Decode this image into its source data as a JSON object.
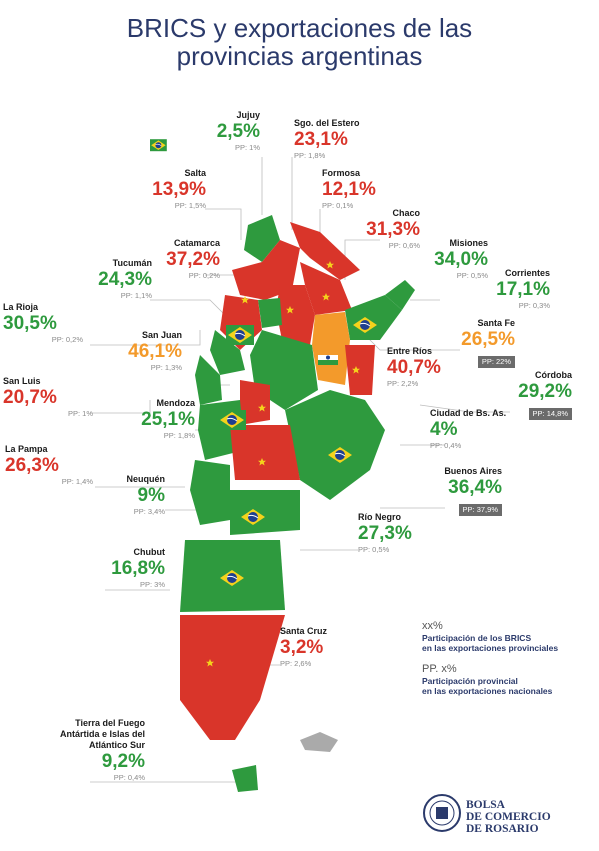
{
  "title_line1": "BRICS y exportaciones de las",
  "title_line2": "provincias argentinas",
  "colors": {
    "green": "#2e9a3e",
    "red": "#d9352a",
    "orange": "#f39a2b",
    "navy": "#2b3a6b",
    "gray": "#8a8a8a",
    "box": "#6b6b6b"
  },
  "provinces": [
    {
      "key": "jujuy",
      "name": "Jujuy",
      "pct": "2,5%",
      "pp": "PP: 1%",
      "color": "green",
      "boxed": false,
      "flag": "brazil"
    },
    {
      "key": "sgo",
      "name": "Sgo. del Estero",
      "pct": "23,1%",
      "pp": "PP: 1,8%",
      "color": "red",
      "boxed": false,
      "flag": "china"
    },
    {
      "key": "salta",
      "name": "Salta",
      "pct": "13,9%",
      "pp": "PP: 1,5%",
      "color": "red",
      "boxed": false,
      "flag": "china"
    },
    {
      "key": "formosa",
      "name": "Formosa",
      "pct": "12,1%",
      "pp": "PP: 0,1%",
      "color": "red",
      "boxed": false,
      "flag": "china"
    },
    {
      "key": "chaco",
      "name": "Chaco",
      "pct": "31,3%",
      "pp": "PP: 0,6%",
      "color": "red",
      "boxed": false,
      "flag": "china"
    },
    {
      "key": "catamarca",
      "name": "Catamarca",
      "pct": "37,2%",
      "pp": "PP: 0,2%",
      "color": "red",
      "boxed": false,
      "flag": "china"
    },
    {
      "key": "misiones",
      "name": "Misiones",
      "pct": "34,0%",
      "pp": "PP: 0,5%",
      "color": "green",
      "boxed": false,
      "flag": "brazil"
    },
    {
      "key": "tucuman",
      "name": "Tucumán",
      "pct": "24,3%",
      "pp": "PP: 1,1%",
      "color": "green",
      "boxed": false,
      "flag": "brazil"
    },
    {
      "key": "corrientes",
      "name": "Corrientes",
      "pct": "17,1%",
      "pp": "PP: 0,3%",
      "color": "green",
      "boxed": false,
      "flag": "brazil"
    },
    {
      "key": "larioja",
      "name": "La Rioja",
      "pct": "30,5%",
      "pp": "PP: 0,2%",
      "color": "green",
      "boxed": false,
      "flag": "brazil"
    },
    {
      "key": "santafe",
      "name": "Santa Fe",
      "pct": "26,5%",
      "pp": "PP: 22%",
      "color": "orange",
      "boxed": true,
      "flag": "india"
    },
    {
      "key": "sanjuan",
      "name": "San Juan",
      "pct": "46,1%",
      "pp": "PP: 1,3%",
      "color": "orange",
      "boxed": false,
      "flag": "india"
    },
    {
      "key": "entrerios",
      "name": "Entre Ríos",
      "pct": "40,7%",
      "pp": "PP: 2,2%",
      "color": "red",
      "boxed": false,
      "flag": "china"
    },
    {
      "key": "cordoba",
      "name": "Córdoba",
      "pct": "29,2%",
      "pp": "PP: 14,8%",
      "color": "green",
      "boxed": true,
      "flag": "brazil"
    },
    {
      "key": "sanluis",
      "name": "San Luis",
      "pct": "20,7%",
      "pp": "PP: 1%",
      "color": "red",
      "boxed": false,
      "flag": "china"
    },
    {
      "key": "mendoza",
      "name": "Mendoza",
      "pct": "25,1%",
      "pp": "PP: 1,8%",
      "color": "green",
      "boxed": false,
      "flag": "brazil"
    },
    {
      "key": "caba",
      "name": "Ciudad de Bs. As.",
      "pct": "4%",
      "pp": "PP: 0,4%",
      "color": "green",
      "boxed": false,
      "flag": "brazil"
    },
    {
      "key": "lapampa",
      "name": "La Pampa",
      "pct": "26,3%",
      "pp": "PP: 1,4%",
      "color": "red",
      "boxed": false,
      "flag": "china"
    },
    {
      "key": "neuquen",
      "name": "Neuquén",
      "pct": "9%",
      "pp": "PP: 3,4%",
      "color": "green",
      "boxed": false,
      "flag": "brazil"
    },
    {
      "key": "bsas",
      "name": "Buenos Aires",
      "pct": "36,4%",
      "pp": "PP: 37,9%",
      "color": "green",
      "boxed": true,
      "flag": "brazil"
    },
    {
      "key": "rionegro",
      "name": "Río Negro",
      "pct": "27,3%",
      "pp": "PP: 0,5%",
      "color": "green",
      "boxed": false,
      "flag": "brazil"
    },
    {
      "key": "chubut",
      "name": "Chubut",
      "pct": "16,8%",
      "pp": "PP: 3%",
      "color": "green",
      "boxed": false,
      "flag": "brazil"
    },
    {
      "key": "santacruz",
      "name": "Santa Cruz",
      "pct": "3,2%",
      "pp": "PP: 2,6%",
      "color": "red",
      "boxed": false,
      "flag": "china"
    },
    {
      "key": "tdf",
      "name": "Tierra del Fuego Antártida e Islas del Atlántico Sur",
      "pct": "9,2%",
      "pp": "PP: 0,4%",
      "color": "green",
      "boxed": false,
      "flag": "brazil"
    }
  ],
  "legend": {
    "key1": "xx%",
    "desc1a": "Participación de los BRICS",
    "desc1b": "en las exportaciones provinciales",
    "key2": "PP. x%",
    "desc2a": "Participación provincial",
    "desc2b": "en las exportaciones nacionales"
  },
  "logo": {
    "line1": "BOLSA",
    "line2": "DE COMERCIO",
    "line3": "DE ROSARIO",
    "seal_text": "BOLSA DE COMERCIO DE ROSARIO"
  }
}
